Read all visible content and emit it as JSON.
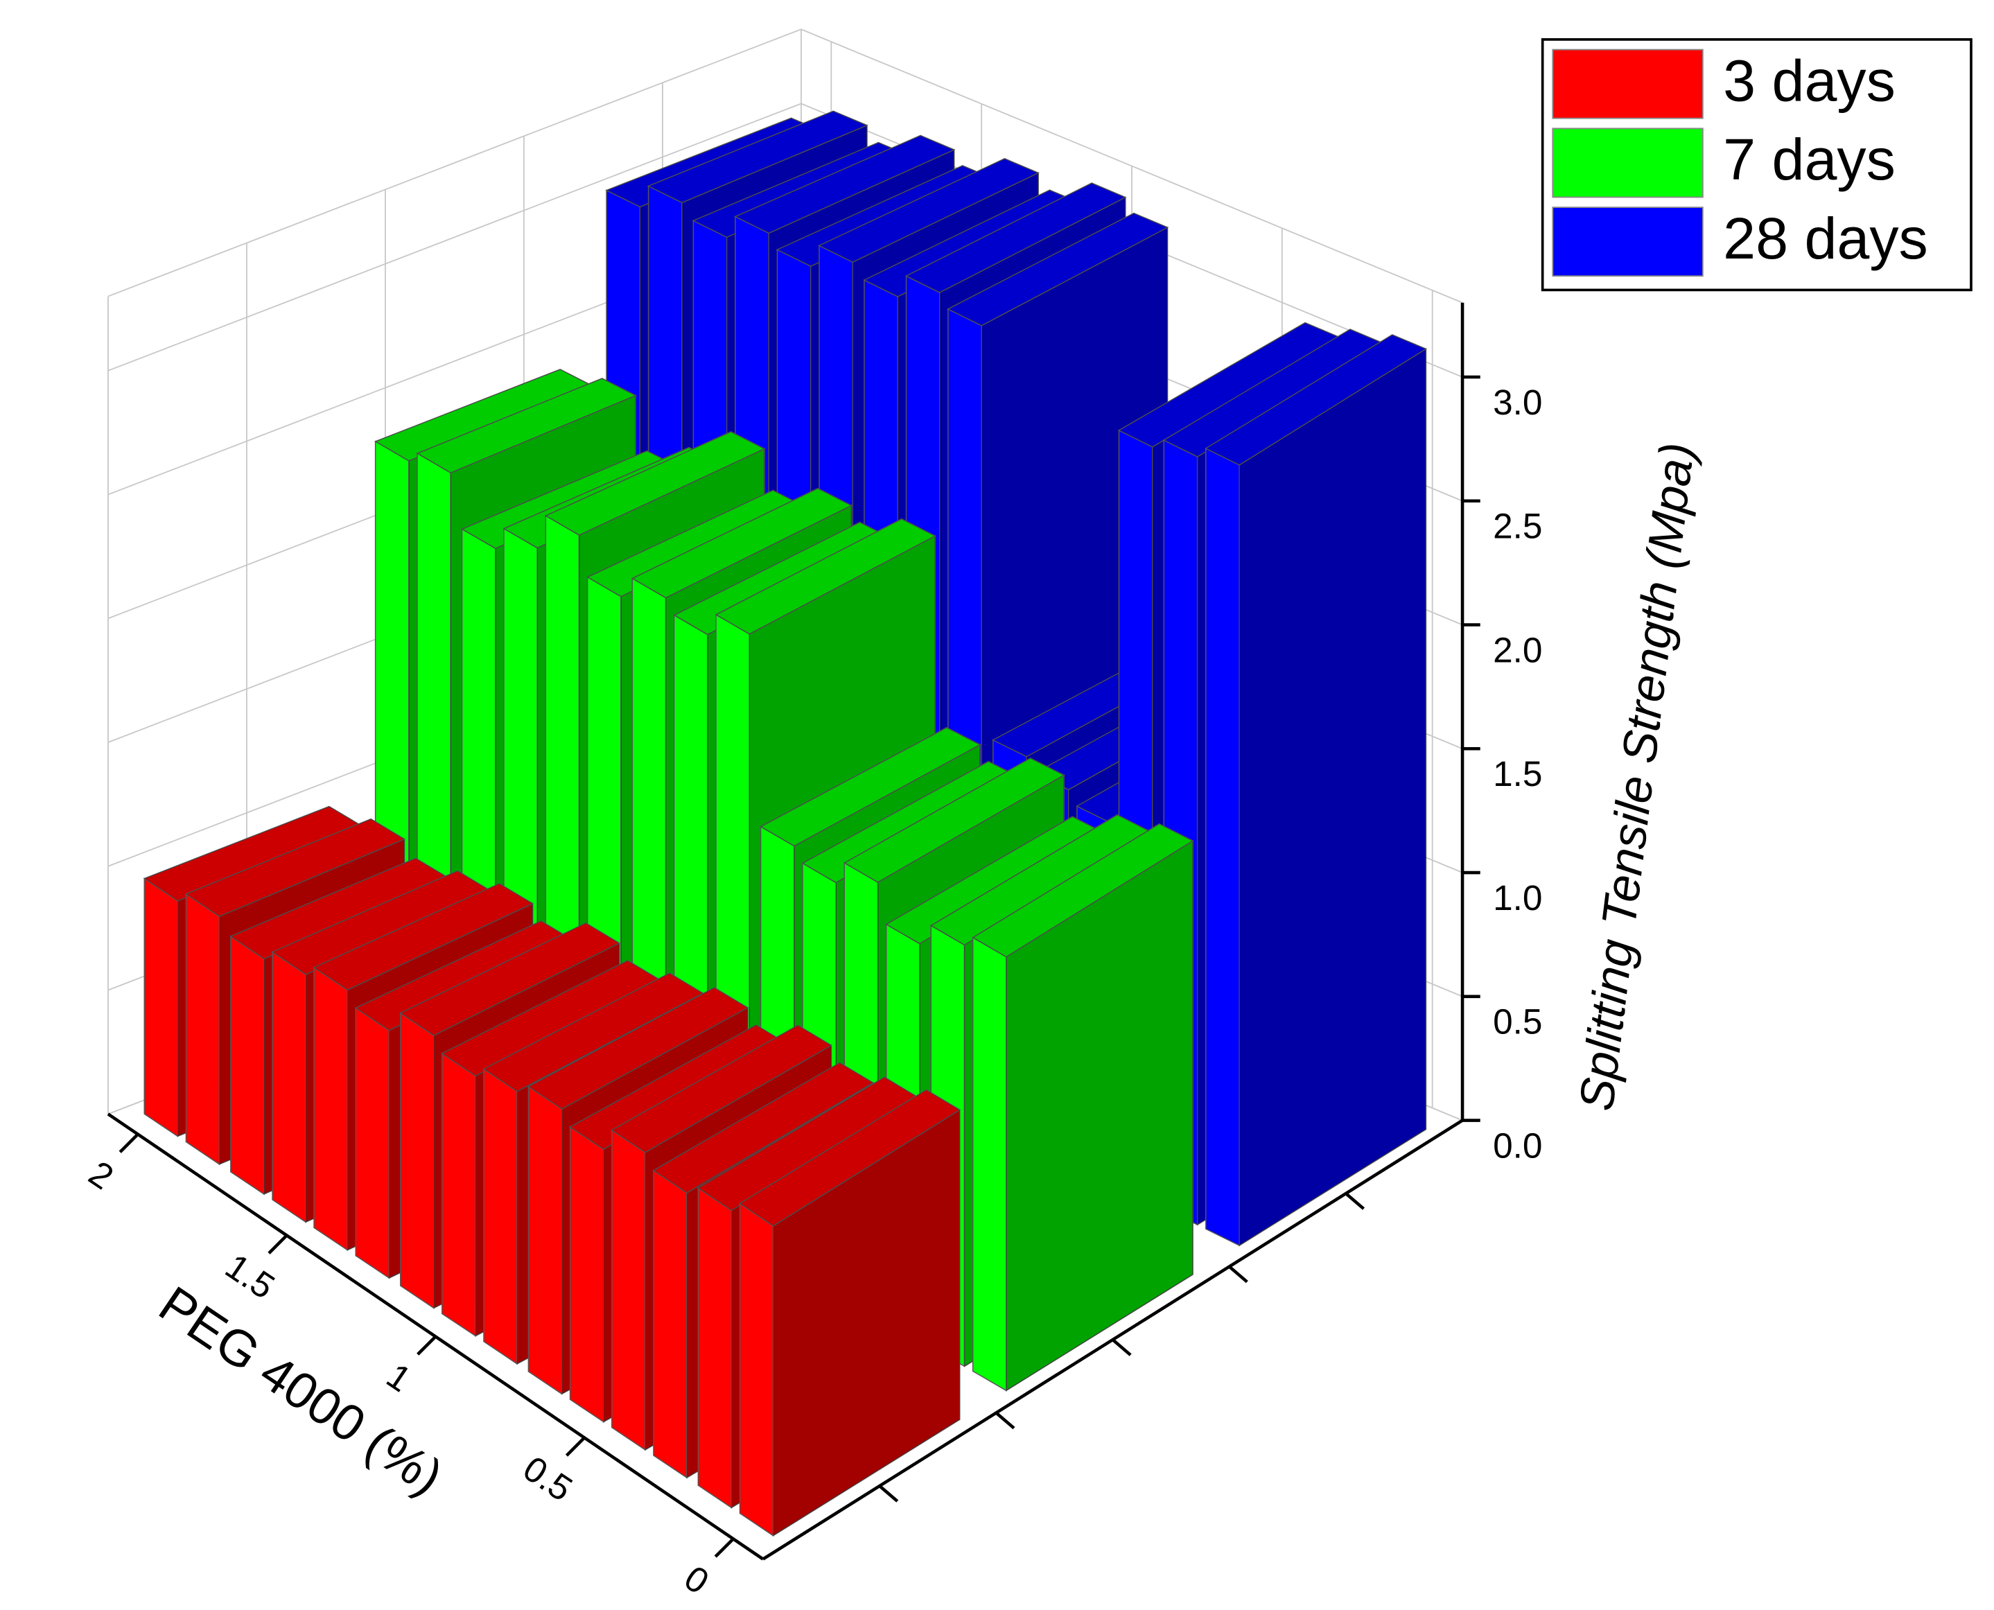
{
  "chart_data": {
    "type": "bar3d",
    "xlabel": "PEG 4000 (%)",
    "ylabel": "Splitting Tensile Strength (Mpa)",
    "x": [
      0,
      0.14,
      0.29,
      0.43,
      0.57,
      0.71,
      0.86,
      1,
      1.14,
      1.29,
      1.43,
      1.57,
      1.71,
      1.86,
      2
    ],
    "xlim": [
      -0.1,
      2.1
    ],
    "xticks": [
      0,
      0.5,
      1,
      1.5,
      2
    ],
    "ylim": [
      0,
      3.3
    ],
    "yticks": [
      {
        "value": 0,
        "label": "0.0"
      },
      0.5,
      {
        "value": 1,
        "label": "1.0"
      },
      1.5,
      {
        "value": 2,
        "label": "2.0"
      },
      2.5,
      {
        "value": 3,
        "label": "3.0"
      }
    ],
    "grid": true,
    "legend": "upper right",
    "series": [
      {
        "name": "3 days",
        "color": "#ff0000",
        "values": [
          1.25,
          1.2,
          1.15,
          1.2,
          1.1,
          1.15,
          1.1,
          1.05,
          1.1,
          1.0,
          1.05,
          1.0,
          0.95,
          1.0,
          0.95
        ]
      },
      {
        "name": "7 days",
        "color": "#00ff00",
        "values": [
          1.75,
          1.7,
          1.6,
          1.75,
          1.65,
          1.7,
          2.45,
          2.35,
          2.4,
          2.3,
          2.45,
          2.3,
          2.2,
          2.4,
          2.35
        ]
      },
      {
        "name": "28 days",
        "color": "#0000ff",
        "values": [
          3.15,
          3.1,
          3.05,
          1.45,
          1.5,
          1.55,
          3.2,
          3.25,
          3.15,
          3.2,
          3.1,
          3.15,
          3.05,
          3.1,
          3.0
        ]
      }
    ]
  }
}
